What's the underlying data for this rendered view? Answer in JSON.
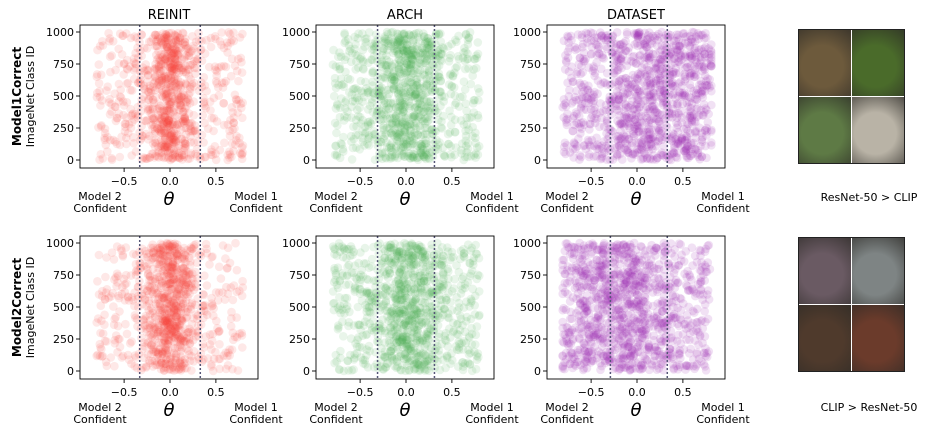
{
  "chart_data": {
    "type": "scatter",
    "columns": [
      "REINIT",
      "ARCH",
      "DATASET"
    ],
    "rows": [
      {
        "title": "Model1Correct",
        "ylabel": "ImageNet Class ID"
      },
      {
        "title": "Model2Correct",
        "ylabel": "ImageNet Class ID"
      }
    ],
    "xlabel": "θ",
    "x_left_note": [
      "Model 2",
      "Confident"
    ],
    "x_right_note": [
      "Model 1",
      "Confident"
    ],
    "xticks": [
      "−0.5",
      "0.0",
      "0.5"
    ],
    "yticks": [
      "0",
      "250",
      "500",
      "750",
      "1000"
    ],
    "ylim": [
      0,
      1000
    ],
    "colors": {
      "REINIT": "#f44336",
      "ARCH": "#4caf50",
      "DATASET": "#9c27b0",
      "threshold": "#555577"
    },
    "panels": [
      {
        "row": 0,
        "col": 0,
        "xlim": [
          -0.85,
          0.85
        ],
        "thresholds": [
          -0.33,
          0.33
        ],
        "center_mean": 0.0,
        "center_spread": 0.13,
        "tails": 0.45,
        "n": 900,
        "opacity": 0.12
      },
      {
        "row": 0,
        "col": 1,
        "xlim": [
          -0.85,
          0.85
        ],
        "thresholds": [
          -0.31,
          0.31
        ],
        "center_mean": 0.0,
        "center_spread": 0.17,
        "tails": 0.55,
        "n": 1000,
        "opacity": 0.12
      },
      {
        "row": 0,
        "col": 2,
        "xlim": [
          -0.85,
          0.85
        ],
        "thresholds": [
          -0.29,
          0.33
        ],
        "center_mean": 0.2,
        "center_spread": 0.35,
        "tails": 0.6,
        "n": 1100,
        "opacity": 0.14
      },
      {
        "row": 1,
        "col": 0,
        "xlim": [
          -0.85,
          0.85
        ],
        "thresholds": [
          -0.33,
          0.33
        ],
        "center_mean": 0.0,
        "center_spread": 0.13,
        "tails": 0.45,
        "n": 900,
        "opacity": 0.12
      },
      {
        "row": 1,
        "col": 1,
        "xlim": [
          -0.85,
          0.85
        ],
        "thresholds": [
          -0.31,
          0.31
        ],
        "center_mean": 0.0,
        "center_spread": 0.17,
        "tails": 0.55,
        "n": 1000,
        "opacity": 0.12
      },
      {
        "row": 1,
        "col": 2,
        "xlim": [
          -0.85,
          0.85
        ],
        "thresholds": [
          -0.29,
          0.33
        ],
        "center_mean": -0.2,
        "center_spread": 0.35,
        "tails": 0.6,
        "n": 1100,
        "opacity": 0.14
      }
    ]
  },
  "examples": [
    {
      "caption": "ResNet-50 > CLIP",
      "tiles": [
        "#6d5a3c",
        "#4a6b2a",
        "#5e7a45",
        "#b9b3a6"
      ],
      "icons": [
        "fish-photo-icon",
        "yellow-flower-photo-icon",
        "black-dog-photo-icon",
        "seal-photo-icon"
      ]
    },
    {
      "caption": "CLIP > ResNet-50",
      "tiles": [
        "#6a5a63",
        "#7e8484",
        "#4f3a2c",
        "#6b3b2b"
      ],
      "icons": [
        "person-photo-icon",
        "machine-photo-icon",
        "crowd-photo-icon",
        "seal-emblem-photo-icon"
      ]
    }
  ]
}
